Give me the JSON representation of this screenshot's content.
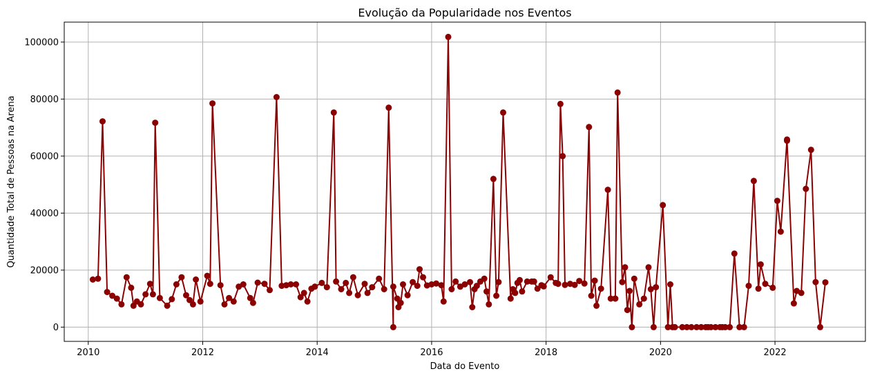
{
  "chart_data": {
    "type": "line",
    "title": "Evolução da Popularidade nos Eventos",
    "xlabel": "Data do Evento",
    "ylabel": "Quantidade Total de Pessoas na Arena",
    "xlim": [
      2009.58,
      2023.58
    ],
    "ylim": [
      -5000,
      107000
    ],
    "x_ticks": [
      2010,
      2012,
      2014,
      2016,
      2018,
      2020,
      2022
    ],
    "x_tick_labels": [
      "2010",
      "2012",
      "2014",
      "2016",
      "2018",
      "2020",
      "2022"
    ],
    "y_ticks": [
      0,
      20000,
      40000,
      60000,
      80000,
      100000
    ],
    "y_tick_labels": [
      "0",
      "20000",
      "40000",
      "60000",
      "80000",
      "100000"
    ],
    "grid": true,
    "colors": {
      "series": "#8b0000",
      "grid": "#b0b0b0"
    },
    "series": [
      {
        "marker": "circle",
        "points": [
          [
            2010.08,
            16700
          ],
          [
            2010.17,
            17000
          ],
          [
            2010.25,
            72200
          ],
          [
            2010.33,
            12300
          ],
          [
            2010.42,
            11000
          ],
          [
            2010.5,
            10000
          ],
          [
            2010.58,
            8000
          ],
          [
            2010.67,
            17500
          ],
          [
            2010.75,
            13800
          ],
          [
            2010.79,
            7500
          ],
          [
            2010.85,
            9000
          ],
          [
            2010.92,
            8000
          ],
          [
            2011.0,
            11500
          ],
          [
            2011.08,
            15200
          ],
          [
            2011.13,
            11500
          ],
          [
            2011.17,
            71700
          ],
          [
            2011.25,
            10200
          ],
          [
            2011.38,
            7500
          ],
          [
            2011.46,
            9800
          ],
          [
            2011.54,
            15000
          ],
          [
            2011.63,
            17500
          ],
          [
            2011.71,
            11200
          ],
          [
            2011.77,
            9500
          ],
          [
            2011.83,
            8000
          ],
          [
            2011.88,
            16700
          ],
          [
            2011.96,
            9000
          ],
          [
            2012.08,
            18000
          ],
          [
            2012.13,
            15200
          ],
          [
            2012.17,
            78500
          ],
          [
            2012.31,
            14700
          ],
          [
            2012.38,
            8000
          ],
          [
            2012.46,
            10200
          ],
          [
            2012.54,
            9000
          ],
          [
            2012.63,
            14200
          ],
          [
            2012.71,
            15000
          ],
          [
            2012.83,
            10200
          ],
          [
            2012.88,
            8500
          ],
          [
            2012.96,
            15600
          ],
          [
            2013.08,
            15200
          ],
          [
            2013.17,
            13000
          ],
          [
            2013.29,
            80700
          ],
          [
            2013.38,
            14500
          ],
          [
            2013.46,
            14700
          ],
          [
            2013.54,
            15000
          ],
          [
            2013.63,
            15000
          ],
          [
            2013.71,
            10500
          ],
          [
            2013.77,
            12000
          ],
          [
            2013.83,
            9000
          ],
          [
            2013.9,
            13500
          ],
          [
            2013.96,
            14200
          ],
          [
            2014.08,
            15500
          ],
          [
            2014.17,
            14000
          ],
          [
            2014.29,
            75300
          ],
          [
            2014.33,
            16000
          ],
          [
            2014.42,
            13300
          ],
          [
            2014.5,
            15500
          ],
          [
            2014.56,
            12000
          ],
          [
            2014.63,
            17500
          ],
          [
            2014.71,
            11200
          ],
          [
            2014.83,
            15200
          ],
          [
            2014.88,
            12000
          ],
          [
            2014.96,
            14000
          ],
          [
            2015.08,
            17000
          ],
          [
            2015.17,
            13300
          ],
          [
            2015.25,
            77000
          ],
          [
            2015.33,
            0
          ],
          [
            2015.33,
            14200
          ],
          [
            2015.4,
            10000
          ],
          [
            2015.42,
            7000
          ],
          [
            2015.46,
            8500
          ],
          [
            2015.5,
            15000
          ],
          [
            2015.58,
            11200
          ],
          [
            2015.67,
            15800
          ],
          [
            2015.75,
            14500
          ],
          [
            2015.79,
            20300
          ],
          [
            2015.85,
            17500
          ],
          [
            2015.92,
            14600
          ],
          [
            2016.0,
            15000
          ],
          [
            2016.08,
            15300
          ],
          [
            2016.17,
            14700
          ],
          [
            2016.21,
            9000
          ],
          [
            2016.29,
            101800
          ],
          [
            2016.35,
            13300
          ],
          [
            2016.42,
            16000
          ],
          [
            2016.5,
            14200
          ],
          [
            2016.58,
            15000
          ],
          [
            2016.67,
            15800
          ],
          [
            2016.71,
            7000
          ],
          [
            2016.75,
            13300
          ],
          [
            2016.79,
            14500
          ],
          [
            2016.85,
            16000
          ],
          [
            2016.92,
            17000
          ],
          [
            2016.96,
            12500
          ],
          [
            2017.0,
            8000
          ],
          [
            2017.08,
            52000
          ],
          [
            2017.13,
            11000
          ],
          [
            2017.17,
            15800
          ],
          [
            2017.25,
            75300
          ],
          [
            2017.38,
            10000
          ],
          [
            2017.42,
            13300
          ],
          [
            2017.46,
            12000
          ],
          [
            2017.5,
            15500
          ],
          [
            2017.54,
            16500
          ],
          [
            2017.58,
            12500
          ],
          [
            2017.67,
            16000
          ],
          [
            2017.75,
            16000
          ],
          [
            2017.79,
            16000
          ],
          [
            2017.85,
            13500
          ],
          [
            2017.92,
            14700
          ],
          [
            2017.96,
            14300
          ],
          [
            2018.08,
            17500
          ],
          [
            2018.17,
            15500
          ],
          [
            2018.21,
            15200
          ],
          [
            2018.25,
            78300
          ],
          [
            2018.29,
            60000
          ],
          [
            2018.33,
            14800
          ],
          [
            2018.42,
            15200
          ],
          [
            2018.5,
            14800
          ],
          [
            2018.58,
            16200
          ],
          [
            2018.67,
            15300
          ],
          [
            2018.75,
            70200
          ],
          [
            2018.79,
            11000
          ],
          [
            2018.85,
            16300
          ],
          [
            2018.88,
            7500
          ],
          [
            2018.96,
            13500
          ],
          [
            2019.08,
            48200
          ],
          [
            2019.13,
            10000
          ],
          [
            2019.21,
            10000
          ],
          [
            2019.25,
            82300
          ],
          [
            2019.33,
            15800
          ],
          [
            2019.38,
            21000
          ],
          [
            2019.42,
            6000
          ],
          [
            2019.46,
            12700
          ],
          [
            2019.5,
            0
          ],
          [
            2019.54,
            17000
          ],
          [
            2019.63,
            8000
          ],
          [
            2019.71,
            10000
          ],
          [
            2019.79,
            21000
          ],
          [
            2019.83,
            13300
          ],
          [
            2019.88,
            0
          ],
          [
            2019.92,
            14000
          ],
          [
            2020.04,
            42800
          ],
          [
            2020.13,
            0
          ],
          [
            2020.17,
            15000
          ],
          [
            2020.21,
            0
          ],
          [
            2020.25,
            0
          ],
          [
            2020.38,
            0
          ],
          [
            2020.46,
            0
          ],
          [
            2020.54,
            0
          ],
          [
            2020.63,
            0
          ],
          [
            2020.71,
            0
          ],
          [
            2020.79,
            0
          ],
          [
            2020.83,
            0
          ],
          [
            2020.88,
            0
          ],
          [
            2020.96,
            0
          ],
          [
            2021.04,
            0
          ],
          [
            2021.08,
            0
          ],
          [
            2021.13,
            0
          ],
          [
            2021.21,
            0
          ],
          [
            2021.29,
            25800
          ],
          [
            2021.38,
            0
          ],
          [
            2021.46,
            0
          ],
          [
            2021.54,
            14500
          ],
          [
            2021.63,
            51300
          ],
          [
            2021.71,
            13500
          ],
          [
            2021.75,
            22000
          ],
          [
            2021.83,
            15200
          ],
          [
            2021.96,
            13800
          ],
          [
            2022.04,
            44300
          ],
          [
            2022.1,
            33500
          ],
          [
            2022.21,
            65800
          ],
          [
            2022.21,
            65400
          ],
          [
            2022.33,
            8300
          ],
          [
            2022.38,
            12700
          ],
          [
            2022.46,
            12000
          ],
          [
            2022.54,
            48500
          ],
          [
            2022.63,
            62200
          ],
          [
            2022.71,
            15800
          ],
          [
            2022.79,
            0
          ],
          [
            2022.88,
            15700
          ]
        ]
      }
    ]
  }
}
